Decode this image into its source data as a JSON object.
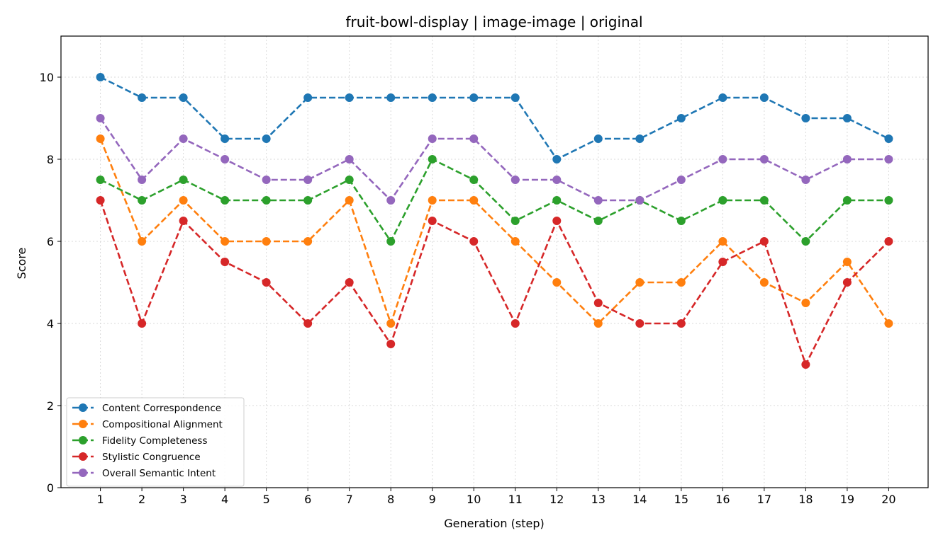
{
  "chart_data": {
    "type": "line",
    "title": "fruit-bowl-display | image-image | original",
    "xlabel": "Generation (step)",
    "ylabel": "Score",
    "x": [
      1,
      2,
      3,
      4,
      5,
      6,
      7,
      8,
      9,
      10,
      11,
      12,
      13,
      14,
      15,
      16,
      17,
      18,
      19,
      20
    ],
    "x_tick_labels": [
      "1",
      "2",
      "3",
      "4",
      "5",
      "6",
      "7",
      "8",
      "9",
      "10",
      "11",
      "12",
      "13",
      "14",
      "15",
      "16",
      "17",
      "18",
      "19",
      "20"
    ],
    "y_ticks": [
      0,
      2,
      4,
      6,
      8,
      10
    ],
    "y_tick_labels": [
      "0",
      "2",
      "4",
      "6",
      "8",
      "10"
    ],
    "xlim": [
      0.05,
      20.95
    ],
    "ylim": [
      0,
      11
    ],
    "grid": true,
    "legend_position": "lower-left",
    "series": [
      {
        "name": "Content Correspondence",
        "color": "#1f77b4",
        "values": [
          10,
          9.5,
          9.5,
          8.5,
          8.5,
          9.5,
          9.5,
          9.5,
          9.5,
          9.5,
          9.5,
          8,
          8.5,
          8.5,
          9,
          9.5,
          9.5,
          9,
          9,
          8.5
        ]
      },
      {
        "name": "Compositional Alignment",
        "color": "#ff7f0e",
        "values": [
          8.5,
          6,
          7,
          6,
          6,
          6,
          7,
          4,
          7,
          7,
          6,
          5,
          4,
          5,
          5,
          6,
          5,
          4.5,
          5.5,
          4
        ]
      },
      {
        "name": "Fidelity Completeness",
        "color": "#2ca02c",
        "values": [
          7.5,
          7,
          7.5,
          7,
          7,
          7,
          7.5,
          6,
          8,
          7.5,
          6.5,
          7,
          6.5,
          7,
          6.5,
          7,
          7,
          6,
          7,
          7
        ]
      },
      {
        "name": "Stylistic Congruence",
        "color": "#d62728",
        "values": [
          7,
          4,
          6.5,
          5.5,
          5,
          4,
          5,
          3.5,
          6.5,
          6,
          4,
          6.5,
          4.5,
          4,
          4,
          5.5,
          6,
          3,
          5,
          6
        ]
      },
      {
        "name": "Overall Semantic Intent",
        "color": "#9467bd",
        "values": [
          9,
          7.5,
          8.5,
          8,
          7.5,
          7.5,
          8,
          7,
          8.5,
          8.5,
          7.5,
          7.5,
          7,
          7,
          7.5,
          8,
          8,
          7.5,
          8,
          8
        ]
      }
    ]
  }
}
